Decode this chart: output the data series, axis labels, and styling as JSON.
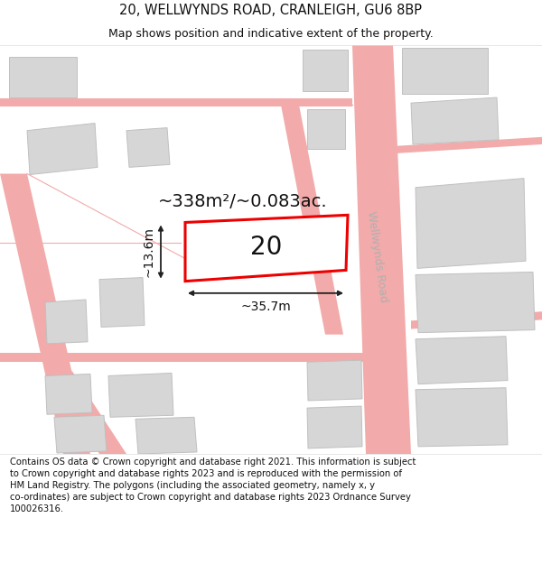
{
  "title_line1": "20, WELLWYNDS ROAD, CRANLEIGH, GU6 8BP",
  "title_line2": "Map shows position and indicative extent of the property.",
  "footer_text": "Contains OS data © Crown copyright and database right 2021. This information is subject to Crown copyright and database rights 2023 and is reproduced with the permission of HM Land Registry. The polygons (including the associated geometry, namely x, y co-ordinates) are subject to Crown copyright and database rights 2023 Ordnance Survey 100026316.",
  "background_color": "#ffffff",
  "map_bg_color": "#f9f9f9",
  "road_color": "#f2aaaa",
  "building_fill": "#d6d6d6",
  "building_stroke": "#c0c0c0",
  "highlight_fill": "#ffffff",
  "highlight_stroke": "#ee0000",
  "road_label": "Wellwynds Road",
  "property_label": "20",
  "area_label": "~338m²/~0.083ac.",
  "width_label": "~35.7m",
  "height_label": "~13.6m",
  "title_fontsize": 10.5,
  "subtitle_fontsize": 9,
  "footer_fontsize": 7.2,
  "property_fontsize": 20,
  "area_fontsize": 14,
  "measure_fontsize": 10,
  "road_label_fontsize": 9,
  "dim_color": "#222222",
  "road_label_color": "#b0b0b0"
}
